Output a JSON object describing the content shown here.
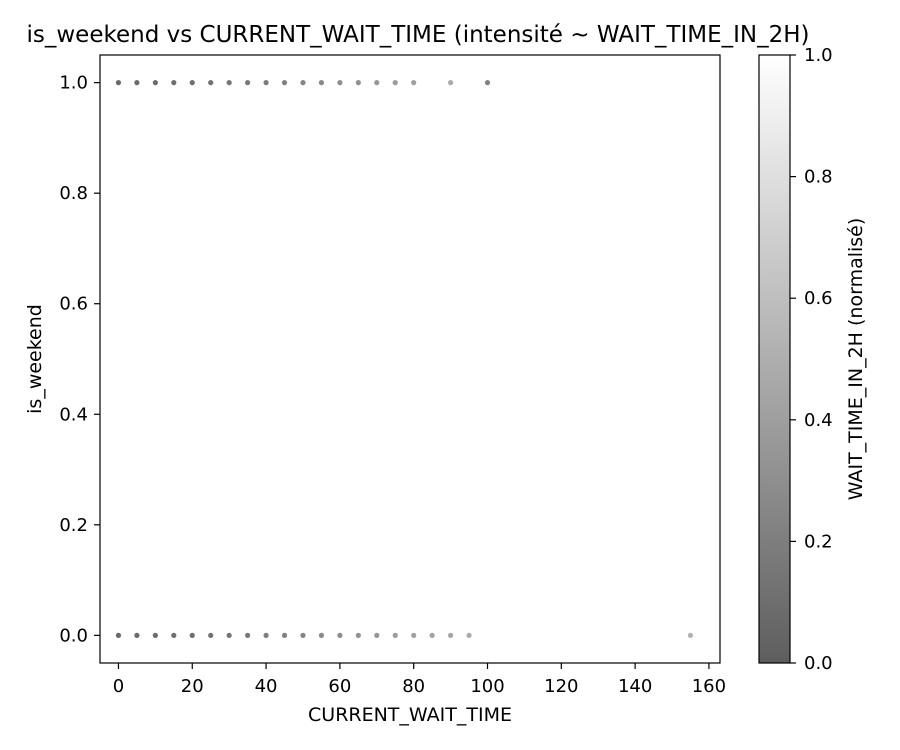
{
  "chart_data": {
    "type": "scatter",
    "title": "is_weekend vs CURRENT_WAIT_TIME (intensité ~ WAIT_TIME_IN_2H)",
    "xlabel": "CURRENT_WAIT_TIME",
    "ylabel": "is_weekend",
    "xlim": [
      -5,
      163
    ],
    "ylim": [
      -0.05,
      1.05
    ],
    "xticks": [
      0,
      20,
      40,
      60,
      80,
      100,
      120,
      140,
      160
    ],
    "yticks": [
      0.0,
      0.2,
      0.4,
      0.6,
      0.8,
      1.0
    ],
    "xtick_labels": [
      "0",
      "20",
      "40",
      "60",
      "80",
      "100",
      "120",
      "140",
      "160"
    ],
    "ytick_labels": [
      "0.0",
      "0.2",
      "0.4",
      "0.6",
      "0.8",
      "1.0"
    ],
    "colorbar": {
      "label": "WAIT_TIME_IN_2H (normalisé)",
      "range": [
        0.0,
        1.0
      ],
      "ticks": [
        0.0,
        0.2,
        0.4,
        0.6,
        0.8,
        1.0
      ],
      "tick_labels": [
        "0.0",
        "0.2",
        "0.4",
        "0.6",
        "0.8",
        "1.0"
      ],
      "colormap": "gray",
      "alpha": 0.6
    },
    "points": [
      {
        "x": 0,
        "y": 1,
        "c": 0.02
      },
      {
        "x": 5,
        "y": 1,
        "c": 0.03
      },
      {
        "x": 10,
        "y": 1,
        "c": 0.04
      },
      {
        "x": 15,
        "y": 1,
        "c": 0.05
      },
      {
        "x": 20,
        "y": 1,
        "c": 0.06
      },
      {
        "x": 25,
        "y": 1,
        "c": 0.08
      },
      {
        "x": 30,
        "y": 1,
        "c": 0.1
      },
      {
        "x": 35,
        "y": 1,
        "c": 0.12
      },
      {
        "x": 40,
        "y": 1,
        "c": 0.14
      },
      {
        "x": 45,
        "y": 1,
        "c": 0.17
      },
      {
        "x": 50,
        "y": 1,
        "c": 0.2
      },
      {
        "x": 55,
        "y": 1,
        "c": 0.23
      },
      {
        "x": 60,
        "y": 1,
        "c": 0.26
      },
      {
        "x": 65,
        "y": 1,
        "c": 0.29
      },
      {
        "x": 70,
        "y": 1,
        "c": 0.32
      },
      {
        "x": 75,
        "y": 1,
        "c": 0.35
      },
      {
        "x": 80,
        "y": 1,
        "c": 0.38
      },
      {
        "x": 90,
        "y": 1,
        "c": 0.45
      },
      {
        "x": 100,
        "y": 1,
        "c": 0.18
      },
      {
        "x": 0,
        "y": 0,
        "c": 0.02
      },
      {
        "x": 5,
        "y": 0,
        "c": 0.03
      },
      {
        "x": 10,
        "y": 0,
        "c": 0.04
      },
      {
        "x": 15,
        "y": 0,
        "c": 0.05
      },
      {
        "x": 20,
        "y": 0,
        "c": 0.06
      },
      {
        "x": 25,
        "y": 0,
        "c": 0.08
      },
      {
        "x": 30,
        "y": 0,
        "c": 0.1
      },
      {
        "x": 35,
        "y": 0,
        "c": 0.12
      },
      {
        "x": 40,
        "y": 0,
        "c": 0.14
      },
      {
        "x": 45,
        "y": 0,
        "c": 0.17
      },
      {
        "x": 50,
        "y": 0,
        "c": 0.2
      },
      {
        "x": 55,
        "y": 0,
        "c": 0.23
      },
      {
        "x": 60,
        "y": 0,
        "c": 0.26
      },
      {
        "x": 65,
        "y": 0,
        "c": 0.29
      },
      {
        "x": 70,
        "y": 0,
        "c": 0.32
      },
      {
        "x": 75,
        "y": 0,
        "c": 0.35
      },
      {
        "x": 80,
        "y": 0,
        "c": 0.38
      },
      {
        "x": 85,
        "y": 0,
        "c": 0.4
      },
      {
        "x": 90,
        "y": 0,
        "c": 0.42
      },
      {
        "x": 95,
        "y": 0,
        "c": 0.45
      },
      {
        "x": 155,
        "y": 0,
        "c": 0.5
      }
    ]
  }
}
